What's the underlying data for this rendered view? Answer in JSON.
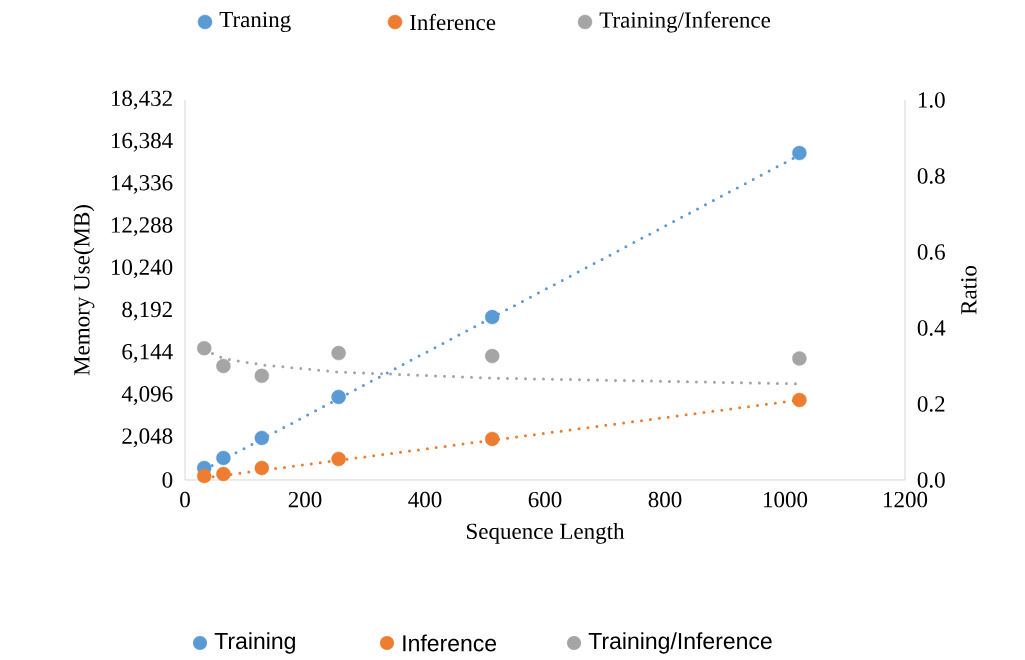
{
  "chart_data": {
    "type": "scatter",
    "xlabel": "Sequence Length",
    "ylabel": "Memory Use(MB)",
    "y2label": "Ratio",
    "xlim": [
      0,
      1200
    ],
    "xticks": [
      0,
      200,
      400,
      600,
      800,
      1000,
      1200
    ],
    "ylim": [
      0,
      18432
    ],
    "yticks": [
      {
        "value": 0,
        "label": "0"
      },
      {
        "value": 2048,
        "label": "2,048"
      },
      {
        "value": 4096,
        "label": "4,096"
      },
      {
        "value": 6144,
        "label": "6,144"
      },
      {
        "value": 8192,
        "label": "8,192"
      },
      {
        "value": 10240,
        "label": "10,240"
      },
      {
        "value": 12288,
        "label": "12,288"
      },
      {
        "value": 14336,
        "label": "14,336"
      },
      {
        "value": 16384,
        "label": "16,384"
      },
      {
        "value": 18432,
        "label": "18,432"
      }
    ],
    "y2lim": [
      0,
      1
    ],
    "y2ticks": [
      {
        "value": 0,
        "label": "0.0"
      },
      {
        "value": 0.2,
        "label": "0.2"
      },
      {
        "value": 0.4,
        "label": "0.4"
      },
      {
        "value": 0.6,
        "label": "0.6"
      },
      {
        "value": 0.8,
        "label": "0.8"
      },
      {
        "value": 1,
        "label": "1.0"
      }
    ],
    "marker": "circle",
    "legend": "top",
    "grid": false,
    "series": [
      {
        "name": "Traning",
        "color": "#5b9bd5",
        "x": [
          32,
          64,
          128,
          256,
          512,
          1024
        ],
        "values": [
          580,
          1070,
          2040,
          4030,
          7900,
          15860
        ]
      },
      {
        "name": "Inference",
        "color": "#ed7d31",
        "x": [
          32,
          64,
          128,
          256,
          512,
          1024
        ],
        "values": [
          190,
          290,
          580,
          1020,
          1990,
          3880
        ]
      },
      {
        "name": "Training/Inference",
        "color": "#a5a5a5",
        "axis": "y2",
        "x": [
          32,
          64,
          128,
          256,
          512,
          1024
        ],
        "values": [
          0.347,
          0.3,
          0.274,
          0.334,
          0.326,
          0.32
        ]
      },
      {
        "type": "line",
        "marker": "none",
        "line_style": "dotted",
        "color": "#5b9bd5",
        "x": [
          32,
          1024
        ],
        "values": [
          500,
          15760
        ]
      },
      {
        "type": "line",
        "marker": "none",
        "line_style": "dotted",
        "color": "#ed7d31",
        "x": [
          32,
          1024
        ],
        "values": [
          100,
          3880
        ]
      },
      {
        "type": "line",
        "marker": "none",
        "line_style": "dotted",
        "color": "#a5a5a5",
        "axis": "y2",
        "x": [
          32,
          64,
          128,
          256,
          512,
          1024
        ],
        "values": [
          0.342,
          0.32,
          0.303,
          0.284,
          0.268,
          0.253
        ]
      }
    ],
    "annotations": [
      "Training",
      "Inference",
      "Training/Inference"
    ]
  }
}
